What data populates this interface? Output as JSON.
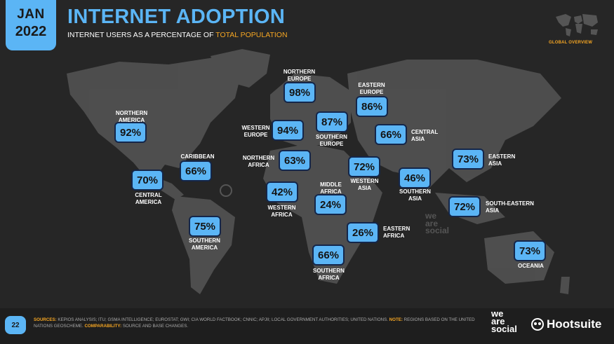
{
  "date": {
    "month": "JAN",
    "year": "2022"
  },
  "title": "INTERNET ADOPTION",
  "subtitle": {
    "prefix": "INTERNET USERS AS A PERCENTAGE OF ",
    "highlight": "TOTAL POPULATION"
  },
  "overview_label": "GLOBAL OVERVIEW",
  "page_number": "22",
  "sources": {
    "sources_key": "SOURCES:",
    "sources_text": " KEPIOS ANALYSIS; ITU; GSMA INTELLIGENCE; EUROSTAT; GWI; CIA WORLD FACTBOOK; CNNIC; APJII; LOCAL GOVERNMENT AUTHORITIES; UNITED NATIONS. ",
    "note_key": "NOTE:",
    "note_text": " REGIONS BASED ON THE UNITED NATIONS GEOSCHEME. ",
    "comp_key": "COMPARABILITY:",
    "comp_text": " SOURCE AND BASE CHANGES."
  },
  "logos": {
    "we_are_social": "we\nare\nsocial",
    "hootsuite": "Hootsuite"
  },
  "colors": {
    "accent": "#5bb5f5",
    "highlight": "#f5a623",
    "background": "#262626",
    "land": "#555555"
  },
  "chart_data": {
    "type": "map",
    "title": "INTERNET ADOPTION",
    "unit": "%",
    "regions": [
      {
        "name": "NORTHERN AMERICA",
        "value": 92,
        "label": "92%"
      },
      {
        "name": "CARIBBEAN",
        "value": 66,
        "label": "66%"
      },
      {
        "name": "CENTRAL AMERICA",
        "value": 70,
        "label": "70%"
      },
      {
        "name": "SOUTHERN AMERICA",
        "value": 75,
        "label": "75%"
      },
      {
        "name": "NORTHERN EUROPE",
        "value": 98,
        "label": "98%"
      },
      {
        "name": "WESTERN EUROPE",
        "value": 94,
        "label": "94%"
      },
      {
        "name": "SOUTHERN EUROPE",
        "value": 87,
        "label": "87%"
      },
      {
        "name": "EASTERN EUROPE",
        "value": 86,
        "label": "86%"
      },
      {
        "name": "CENTRAL ASIA",
        "value": 66,
        "label": "66%"
      },
      {
        "name": "NORTHERN AFRICA",
        "value": 63,
        "label": "63%"
      },
      {
        "name": "WESTERN ASIA",
        "value": 72,
        "label": "72%"
      },
      {
        "name": "SOUTHERN ASIA",
        "value": 46,
        "label": "46%"
      },
      {
        "name": "EASTERN ASIA",
        "value": 73,
        "label": "73%"
      },
      {
        "name": "WESTERN AFRICA",
        "value": 42,
        "label": "42%"
      },
      {
        "name": "MIDDLE AFRICA",
        "value": 24,
        "label": "24%"
      },
      {
        "name": "EASTERN AFRICA",
        "value": 26,
        "label": "26%"
      },
      {
        "name": "SOUTHERN AFRICA",
        "value": 66,
        "label": "66%"
      },
      {
        "name": "SOUTH-EASTERN ASIA",
        "value": 72,
        "label": "72%"
      },
      {
        "name": "OCEANIA",
        "value": 73,
        "label": "73%"
      }
    ]
  }
}
